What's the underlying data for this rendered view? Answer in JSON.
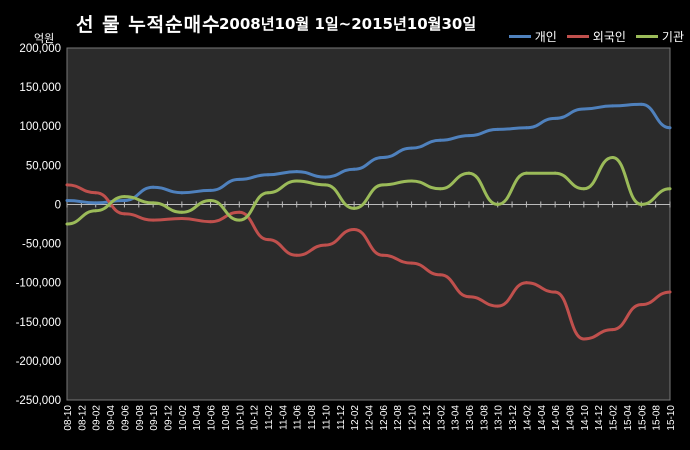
{
  "chart_data": {
    "type": "line",
    "title": "선 물 누적순매수",
    "subtitle": "2008년10월 1일~2015년10월30일",
    "ylabel": "억원",
    "xlabel": "",
    "ylim": [
      -250000,
      200000
    ],
    "yticks": [
      "200,000",
      "150,000",
      "100,000",
      "50,000",
      "0",
      "-50,000",
      "-100,000",
      "-150,000",
      "-200,000",
      "-250,000"
    ],
    "ytick_values": [
      200000,
      150000,
      100000,
      50000,
      0,
      -50000,
      -100000,
      -150000,
      -200000,
      -250000
    ],
    "grid": false,
    "legend_position": "top-right",
    "x_tick_labels": [
      "08-10",
      "08-12",
      "09-02",
      "09-04",
      "09-06",
      "09-08",
      "09-10",
      "09-12",
      "10-02",
      "10-04",
      "10-06",
      "10-08",
      "10-10",
      "10-12",
      "11-02",
      "11-04",
      "11-06",
      "11-08",
      "11-10",
      "11-12",
      "12-02",
      "12-04",
      "12-06",
      "12-08",
      "12-10",
      "12-12",
      "13-02",
      "13-04",
      "13-06",
      "13-08",
      "13-10",
      "13-12",
      "14-02",
      "14-04",
      "14-06",
      "14-08",
      "14-10",
      "14-12",
      "15-02",
      "15-04",
      "15-06",
      "15-08",
      "15-10"
    ],
    "series": [
      {
        "name": "개인",
        "color": "#4f81bd",
        "x": [
          "08-10",
          "09-02",
          "09-06",
          "09-10",
          "10-02",
          "10-06",
          "10-10",
          "11-02",
          "11-06",
          "11-10",
          "12-02",
          "12-06",
          "12-10",
          "13-02",
          "13-06",
          "13-10",
          "14-02",
          "14-06",
          "14-10",
          "15-02",
          "15-06",
          "15-10"
        ],
        "values": [
          5000,
          2000,
          5000,
          22000,
          15000,
          18000,
          32000,
          38000,
          42000,
          35000,
          45000,
          60000,
          72000,
          82000,
          88000,
          96000,
          98000,
          110000,
          122000,
          126000,
          128000,
          98000
        ]
      },
      {
        "name": "외국인",
        "color": "#c0504d",
        "x": [
          "08-10",
          "09-02",
          "09-06",
          "09-10",
          "10-02",
          "10-06",
          "10-10",
          "11-02",
          "11-06",
          "11-10",
          "12-02",
          "12-06",
          "12-10",
          "13-02",
          "13-06",
          "13-10",
          "14-02",
          "14-06",
          "14-10",
          "15-02",
          "15-06",
          "15-10"
        ],
        "values": [
          25000,
          15000,
          -12000,
          -20000,
          -18000,
          -22000,
          -10000,
          -45000,
          -65000,
          -52000,
          -32000,
          -65000,
          -75000,
          -90000,
          -118000,
          -130000,
          -100000,
          -112000,
          -172000,
          -160000,
          -128000,
          -112000
        ]
      },
      {
        "name": "기관",
        "color": "#9bbb59",
        "x": [
          "08-10",
          "09-02",
          "09-06",
          "09-10",
          "10-02",
          "10-06",
          "10-10",
          "11-02",
          "11-06",
          "11-10",
          "12-02",
          "12-06",
          "12-10",
          "13-02",
          "13-06",
          "13-10",
          "14-02",
          "14-06",
          "14-10",
          "15-02",
          "15-06",
          "15-10"
        ],
        "values": [
          -25000,
          -8000,
          10000,
          2000,
          -10000,
          5000,
          -20000,
          15000,
          30000,
          25000,
          -5000,
          25000,
          30000,
          20000,
          40000,
          0,
          40000,
          40000,
          20000,
          60000,
          0,
          20000
        ]
      }
    ]
  }
}
